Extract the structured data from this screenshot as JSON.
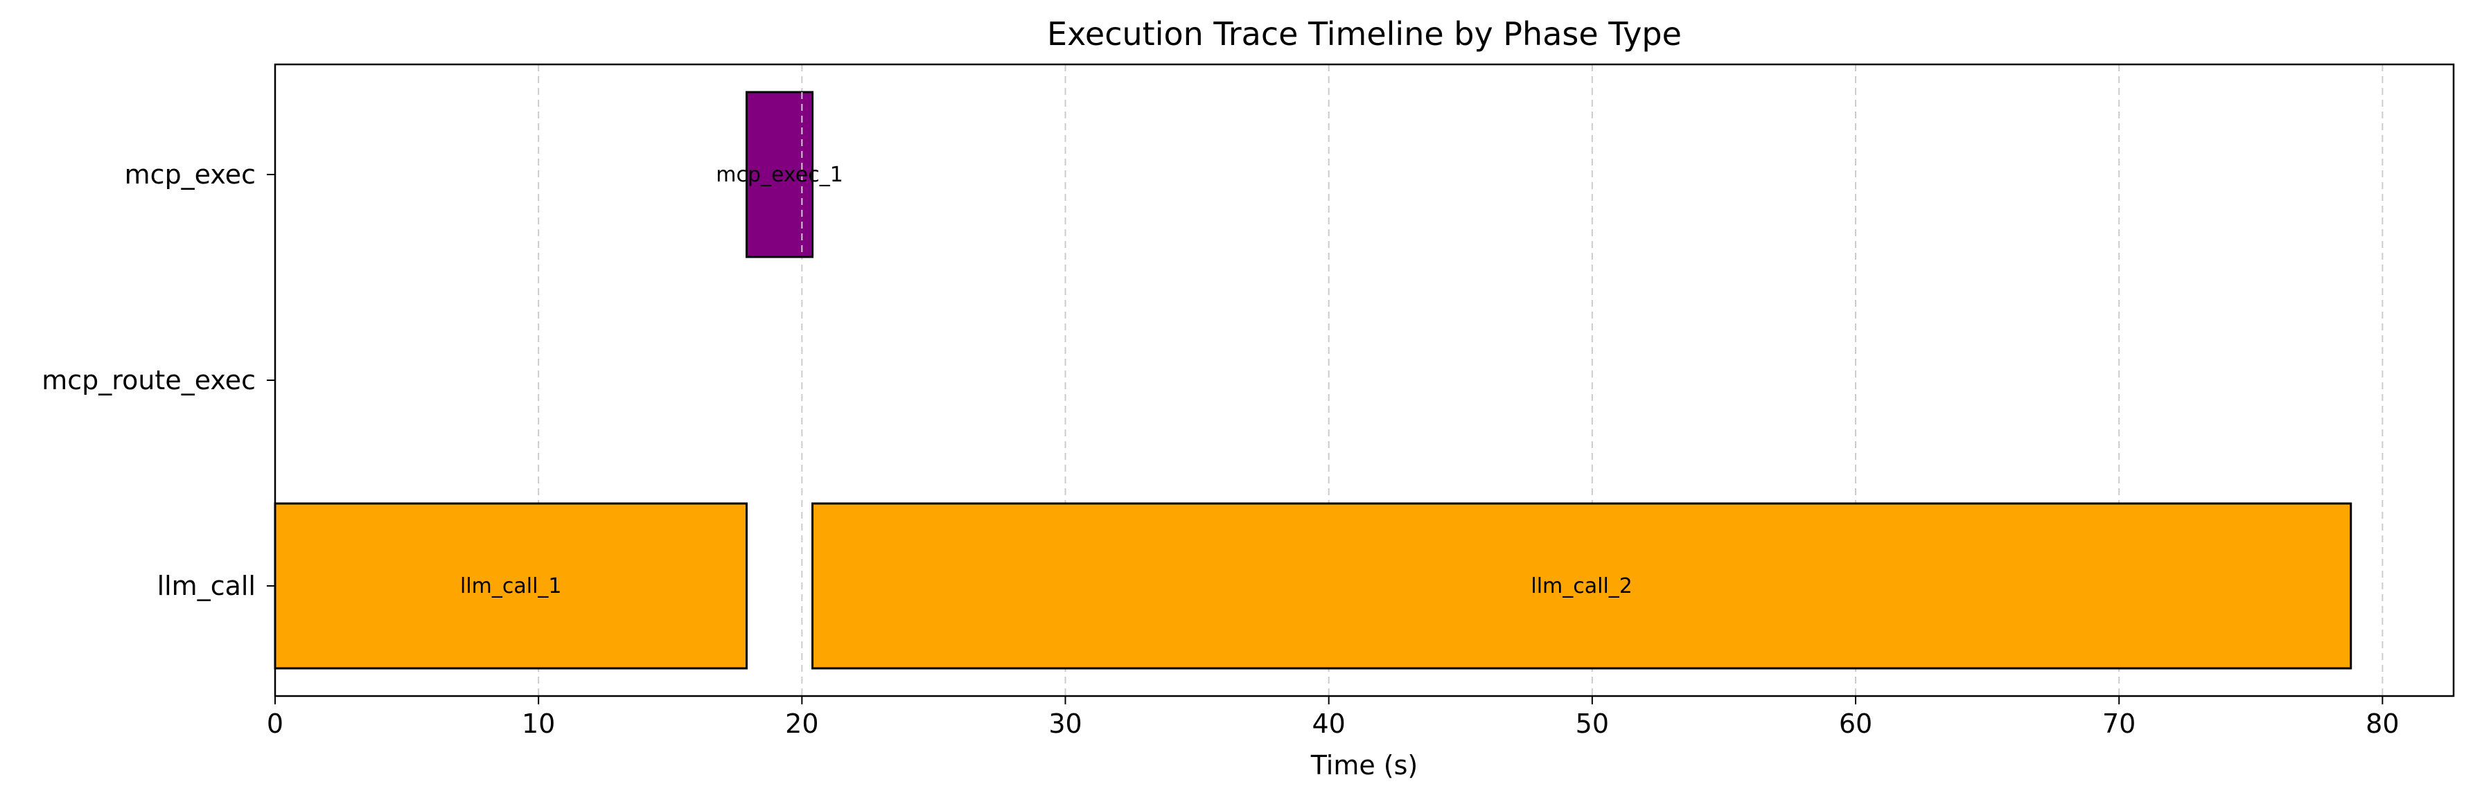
{
  "chart_data": {
    "type": "bar",
    "orientation": "horizontal",
    "title": "Execution Trace Timeline by Phase Type",
    "xlabel": "Time (s)",
    "ylabel": "",
    "xlim": [
      0,
      82.7
    ],
    "xticks": [
      0,
      10,
      20,
      30,
      40,
      50,
      60,
      70,
      80
    ],
    "categories": [
      "llm_call",
      "mcp_route_exec",
      "mcp_exec"
    ],
    "grid": "x-dashed",
    "bars": [
      {
        "label": "llm_call_1",
        "category": "llm_call",
        "start": 0,
        "end": 17.9,
        "color": "#FFA500"
      },
      {
        "label": "mcp_exec_1",
        "category": "mcp_exec",
        "start": 17.9,
        "end": 20.4,
        "color": "#800080"
      },
      {
        "label": "llm_call_2",
        "category": "llm_call",
        "start": 20.4,
        "end": 78.8,
        "color": "#FFA500"
      }
    ]
  }
}
